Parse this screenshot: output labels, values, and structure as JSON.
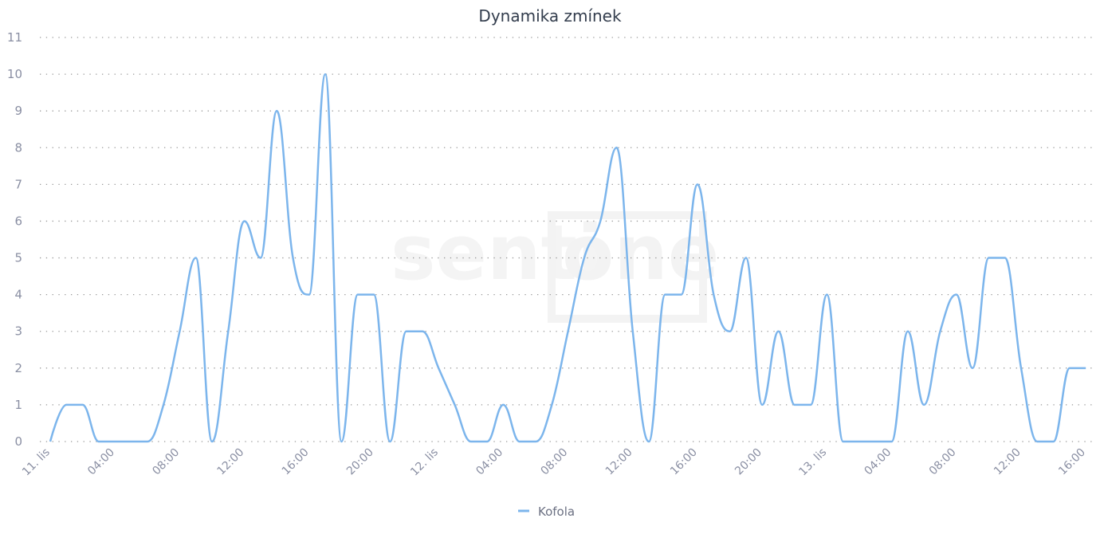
{
  "chart_data": {
    "type": "line",
    "title": "Dynamika zmínek",
    "xlabel": "",
    "ylabel": "",
    "ylim": [
      0,
      11
    ],
    "yticks": [
      0,
      1,
      2,
      3,
      4,
      5,
      6,
      7,
      8,
      9,
      10,
      11
    ],
    "grid": true,
    "curve": "spline",
    "x_interval": "1 hour",
    "x_tick_labels": [
      "11. lis",
      "04:00",
      "08:00",
      "12:00",
      "16:00",
      "20:00",
      "12. lis",
      "04:00",
      "08:00",
      "12:00",
      "16:00",
      "20:00",
      "13. lis",
      "04:00",
      "08:00",
      "12:00",
      "16:00"
    ],
    "legend_position": "bottom-center",
    "series": [
      {
        "name": "Kofola",
        "color": "#7cb5ec",
        "values": [
          0,
          1,
          1,
          0,
          0,
          0,
          0,
          1,
          3,
          5,
          0,
          3,
          6,
          5,
          9,
          5,
          4,
          10,
          0,
          4,
          4,
          0,
          3,
          3,
          2,
          1,
          0,
          0,
          1,
          0,
          0,
          1,
          3,
          5,
          6,
          8,
          3,
          0,
          4,
          4,
          7,
          4,
          3,
          5,
          1,
          3,
          1,
          1,
          4,
          0,
          0,
          0,
          0,
          3,
          1,
          3,
          4,
          2,
          5,
          5,
          2,
          0,
          0,
          2,
          2
        ]
      }
    ]
  },
  "watermark": "sentione"
}
